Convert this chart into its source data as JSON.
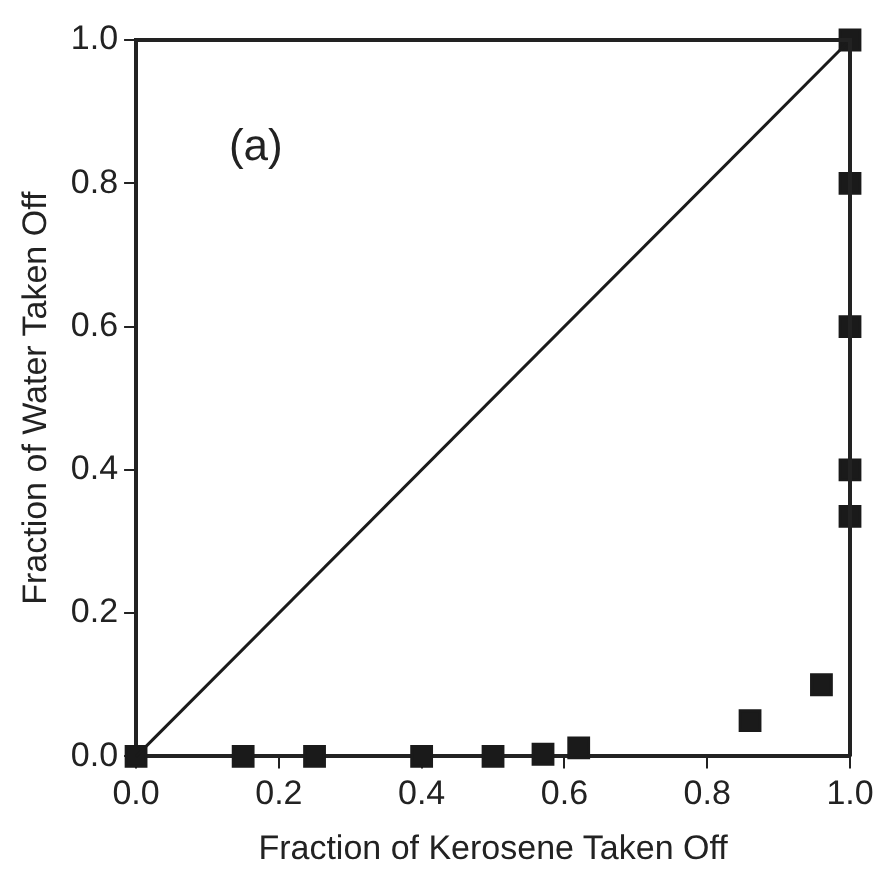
{
  "chart_data": {
    "type": "scatter",
    "xlabel": "Fraction of Kerosene Taken Off",
    "ylabel": "Fraction of Water Taken Off",
    "annotations": [
      "(a)"
    ],
    "xlim": [
      0,
      1
    ],
    "ylim": [
      0,
      1
    ],
    "xticks": [
      {
        "value": 0,
        "label": "0.0"
      },
      {
        "value": 0.2,
        "label": "0.2"
      },
      {
        "value": 0.4,
        "label": "0.4"
      },
      {
        "value": 0.6,
        "label": "0.6"
      },
      {
        "value": 0.8,
        "label": "0.8"
      },
      {
        "value": 1,
        "label": "1.0"
      }
    ],
    "yticks": [
      {
        "value": 0,
        "label": "0.0"
      },
      {
        "value": 0.2,
        "label": "0.2"
      },
      {
        "value": 0.4,
        "label": "0.4"
      },
      {
        "value": 0.6,
        "label": "0.6"
      },
      {
        "value": 0.8,
        "label": "0.8"
      },
      {
        "value": 1,
        "label": "1.0"
      }
    ],
    "grid": false,
    "legend": false,
    "marker": "square",
    "series": [
      {
        "type": "line",
        "color": "#1a1a1a",
        "x": [
          0,
          1
        ],
        "values": [
          0,
          1
        ],
        "marker": "none"
      },
      {
        "color": "#1a1a1a",
        "x": [
          0,
          0.15,
          0.25,
          0.4,
          0.5,
          0.57,
          0.62,
          0.86,
          0.96,
          1,
          1,
          1,
          1,
          1
        ],
        "values": [
          0,
          0,
          0,
          0,
          0,
          0.003,
          0.012,
          0.05,
          0.1,
          0.335,
          0.4,
          0.6,
          0.8,
          1
        ]
      }
    ]
  }
}
